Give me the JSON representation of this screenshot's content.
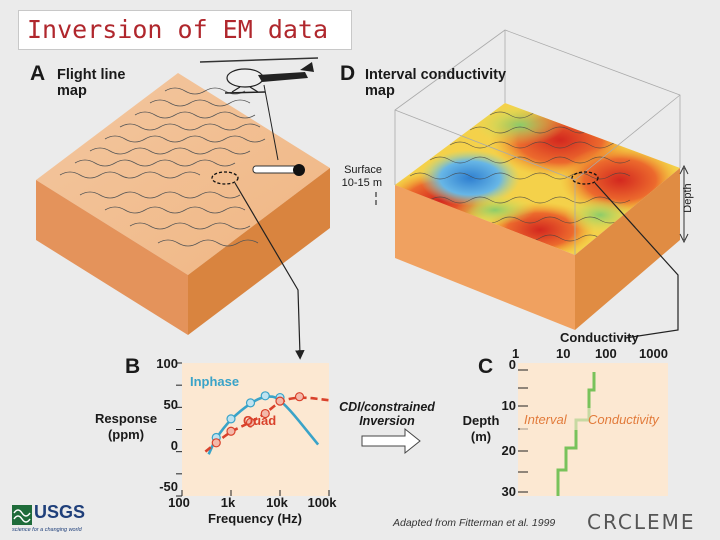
{
  "title": "Inversion of EM data",
  "panel_a": {
    "letter": "A",
    "title_line1": "Flight line",
    "title_line2": "map"
  },
  "panel_d": {
    "letter": "D",
    "title_line1": "Interval conductivity",
    "title_line2": "map",
    "surface_label_line1": "Surface",
    "surface_label_line2": "10-15 m",
    "depth_label": "Depth"
  },
  "panel_b": {
    "letter": "B",
    "ylabel_line1": "Response",
    "ylabel_line2": "(ppm)",
    "xlabel": "Frequency (Hz)",
    "y_ticks": [
      "100",
      "50",
      "0",
      "-50"
    ],
    "x_ticks": [
      "100",
      "1k",
      "10k",
      "100k"
    ],
    "inphase_label": "Inphase",
    "quad_label": "Quad"
  },
  "arrow": {
    "line1": "CDI/constrained",
    "line2": "Inversion"
  },
  "panel_c": {
    "letter": "C",
    "top_label": "Conductivity",
    "x_ticks": [
      "1",
      "10",
      "100",
      "1000"
    ],
    "ylabel_line1": "Depth",
    "ylabel_line2": "(m)",
    "y_ticks": [
      "0",
      "10",
      "20",
      "30"
    ],
    "interval_label": "Interval",
    "conductivity_label": "Conductivity"
  },
  "footer": {
    "usgs": "USGS",
    "usgs_tagline": "science for a changing world",
    "credit": "Adapted from Fitterman et al. 1999",
    "crcleme": "CRCLEME"
  },
  "colors": {
    "title": "#b0272d",
    "inphase": "#3aa3c8",
    "quad": "#d9412b",
    "block": "#f1a466",
    "block_side": "#e08c43",
    "profile": "#78c25b"
  },
  "chart_data": {
    "type": "line",
    "xlabel": "Frequency (Hz)",
    "ylabel": "Response (ppm)",
    "x_scale": "log",
    "xlim": [
      100,
      100000
    ],
    "ylim": [
      -50,
      100
    ],
    "series": [
      {
        "name": "Inphase",
        "x": [
          500,
          1000,
          2500,
          5000,
          10000
        ],
        "values": [
          16,
          37,
          55,
          63,
          61
        ]
      },
      {
        "name": "Quad",
        "x": [
          500,
          1000,
          2500,
          5000,
          10000,
          25000
        ],
        "values": [
          10,
          23,
          33,
          43,
          57,
          62
        ]
      }
    ]
  }
}
